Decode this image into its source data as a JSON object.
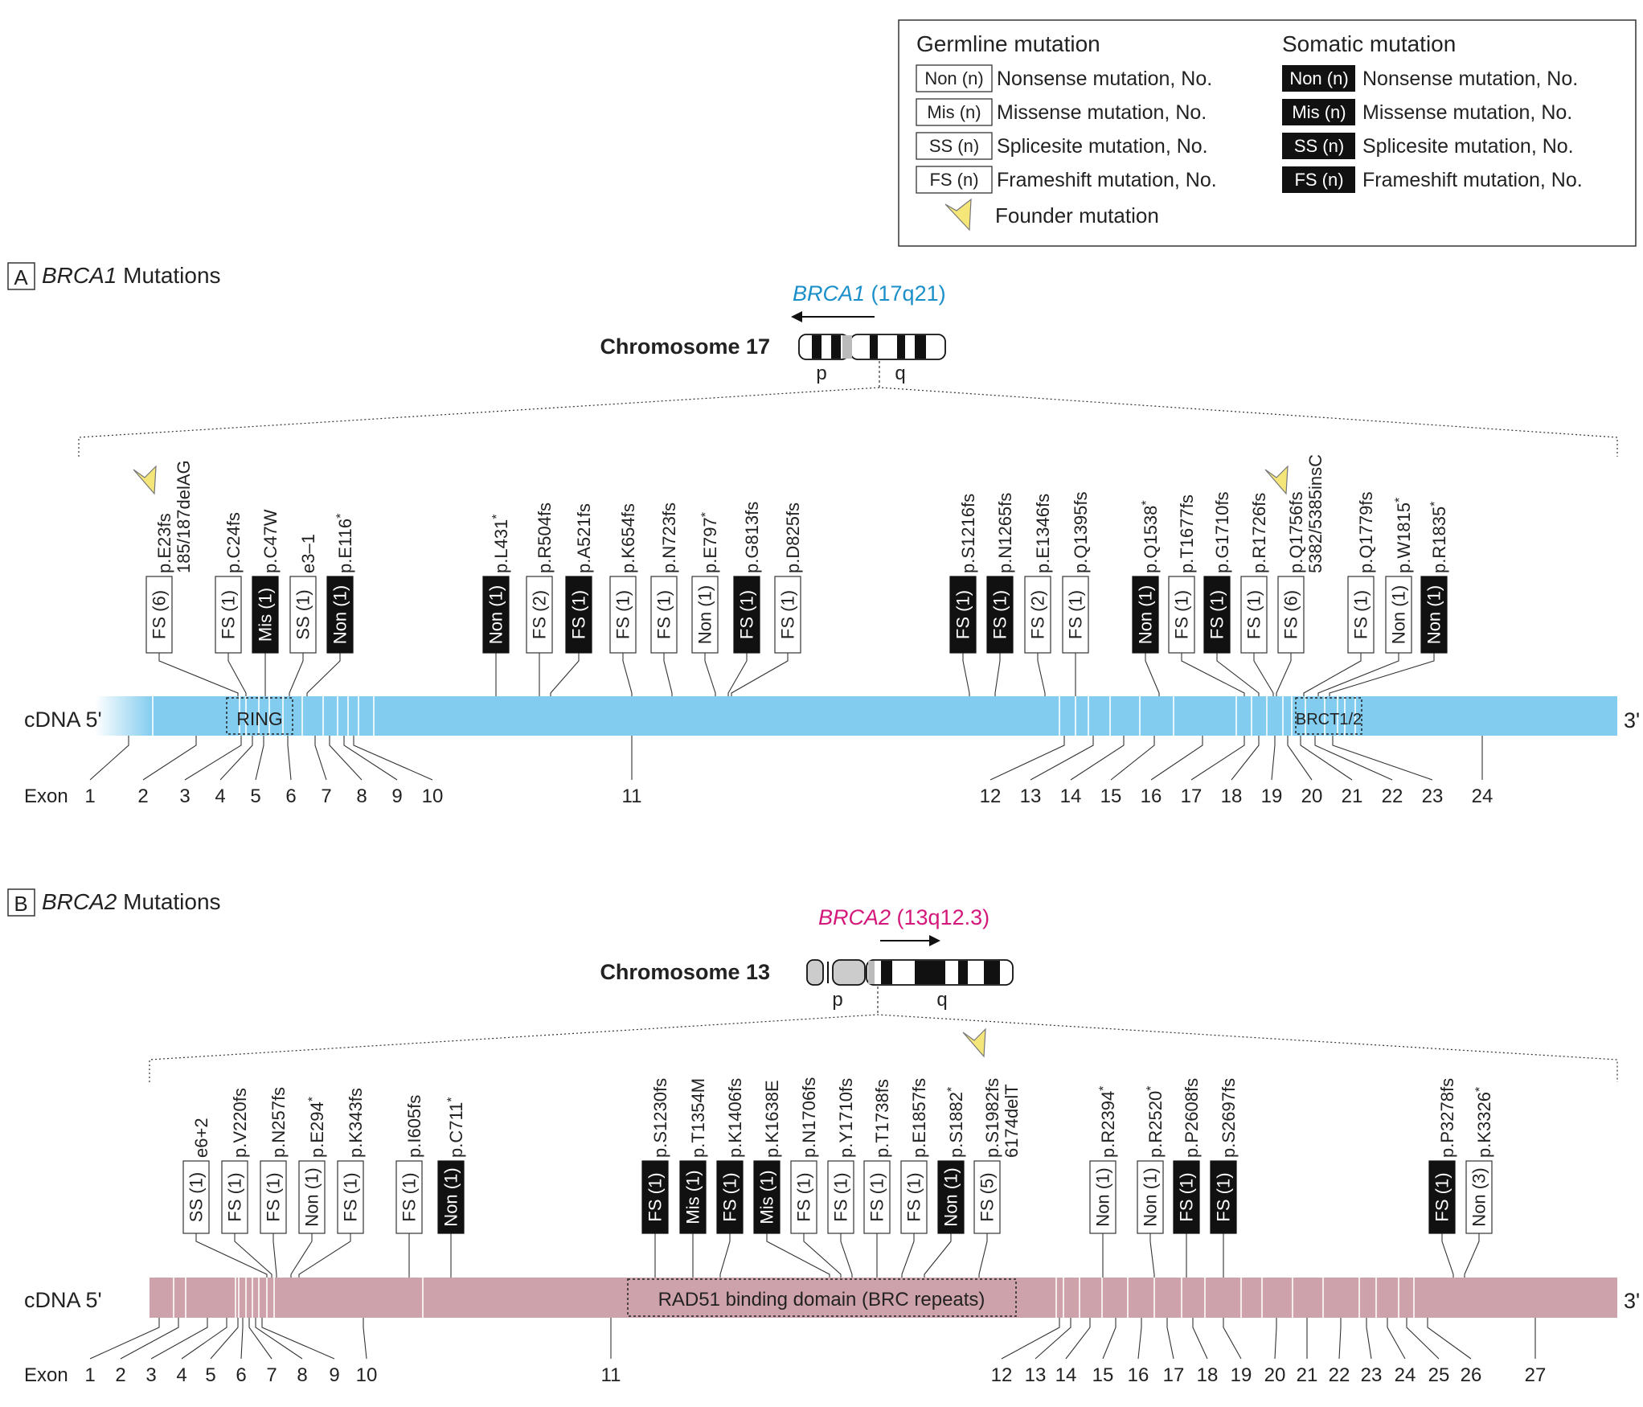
{
  "legend": {
    "germline_title": "Germline mutation",
    "somatic_title": "Somatic mutation",
    "rows": [
      {
        "box": "Non (n)",
        "desc": "Nonsense mutation, No."
      },
      {
        "box": "Mis (n)",
        "desc": "Missense mutation, No."
      },
      {
        "box": "SS (n)",
        "desc": "Splicesite mutation, No."
      },
      {
        "box": "FS (n)",
        "desc": "Frameshift mutation, No."
      }
    ],
    "founder_label": "Founder mutation"
  },
  "colors": {
    "brca1_bar": "#82ccef",
    "brca2_bar": "#cea2aa",
    "brca1_gene_label": "#1a8fc9",
    "brca2_gene_label": "#d4177a",
    "somatic_fill": "#111111",
    "founder_arrow": "#f5e67a"
  },
  "panels": [
    {
      "letter": "A",
      "gene_italic": "BRCA1",
      "title_rest": " Mutations",
      "gene_symbol": "BRCA1",
      "locus": " (17q21)",
      "chromosome_label": "Chromosome 17",
      "arm_p": "p",
      "arm_q": "q",
      "cdna_label": "cDNA 5'",
      "three_prime": "3'",
      "exon_label": "Exon",
      "domains": [
        "RING",
        "BRCT1/2"
      ],
      "exons": [
        "1",
        "2",
        "3",
        "4",
        "5",
        "6",
        "7",
        "8",
        "9",
        "10",
        "11",
        "12",
        "13",
        "14",
        "15",
        "16",
        "17",
        "18",
        "19",
        "20",
        "21",
        "22",
        "23",
        "24"
      ],
      "mutations": [
        {
          "box": "FS (6)",
          "somatic": false,
          "label": "p.E23fs",
          "label2": "185/187delAG",
          "star": false,
          "founder": true
        },
        {
          "box": "FS (1)",
          "somatic": false,
          "label": "p.C24fs",
          "star": false,
          "founder": false
        },
        {
          "box": "Mis (1)",
          "somatic": true,
          "label": "p.C47W",
          "star": false,
          "founder": false
        },
        {
          "box": "SS (1)",
          "somatic": false,
          "label": "e3–1",
          "star": false,
          "founder": false
        },
        {
          "box": "Non (1)",
          "somatic": true,
          "label": "p.E116",
          "star": true,
          "founder": false
        },
        {
          "box": "Non (1)",
          "somatic": true,
          "label": "p.L431",
          "star": true,
          "founder": false
        },
        {
          "box": "FS (2)",
          "somatic": false,
          "label": "p.R504fs",
          "star": false,
          "founder": false
        },
        {
          "box": "FS (1)",
          "somatic": true,
          "label": "p.A521fs",
          "star": false,
          "founder": false
        },
        {
          "box": "FS (1)",
          "somatic": false,
          "label": "p.K654fs",
          "star": false,
          "founder": false
        },
        {
          "box": "FS (1)",
          "somatic": false,
          "label": "p.N723fs",
          "star": false,
          "founder": false
        },
        {
          "box": "Non (1)",
          "somatic": false,
          "label": "p.E797",
          "star": true,
          "founder": false
        },
        {
          "box": "FS (1)",
          "somatic": true,
          "label": "p.G813fs",
          "star": false,
          "founder": false
        },
        {
          "box": "FS (1)",
          "somatic": false,
          "label": "p.D825fs",
          "star": false,
          "founder": false
        },
        {
          "box": "FS (1)",
          "somatic": true,
          "label": "p.S1216fs",
          "star": false,
          "founder": false
        },
        {
          "box": "FS (1)",
          "somatic": true,
          "label": "p.N1265fs",
          "star": false,
          "founder": false
        },
        {
          "box": "FS (2)",
          "somatic": false,
          "label": "p.E1346fs",
          "star": false,
          "founder": false
        },
        {
          "box": "FS (1)",
          "somatic": false,
          "label": "p.Q1395fs",
          "star": false,
          "founder": false
        },
        {
          "box": "Non (1)",
          "somatic": true,
          "label": "p.Q1538",
          "star": true,
          "founder": false
        },
        {
          "box": "FS (1)",
          "somatic": false,
          "label": "p.T1677fs",
          "star": false,
          "founder": false
        },
        {
          "box": "FS (1)",
          "somatic": true,
          "label": "p.G1710fs",
          "star": false,
          "founder": false
        },
        {
          "box": "FS (1)",
          "somatic": false,
          "label": "p.R1726fs",
          "star": false,
          "founder": false
        },
        {
          "box": "FS (6)",
          "somatic": false,
          "label": "p.Q1756fs",
          "label2": "5382/5385insC",
          "star": false,
          "founder": true
        },
        {
          "box": "FS (1)",
          "somatic": false,
          "label": "p.Q1779fs",
          "star": false,
          "founder": false
        },
        {
          "box": "Non (1)",
          "somatic": false,
          "label": "p.W1815",
          "star": true,
          "founder": false
        },
        {
          "box": "Non (1)",
          "somatic": true,
          "label": "p.R1835",
          "star": true,
          "founder": false
        }
      ]
    },
    {
      "letter": "B",
      "gene_italic": "BRCA2",
      "title_rest": " Mutations",
      "gene_symbol": "BRCA2",
      "locus": " (13q12.3)",
      "chromosome_label": "Chromosome 13",
      "arm_p": "p",
      "arm_q": "q",
      "cdna_label": "cDNA 5'",
      "three_prime": "3'",
      "exon_label": "Exon",
      "domains": [
        "RAD51 binding domain (BRC repeats)"
      ],
      "exons": [
        "1",
        "2",
        "3",
        "4",
        "5",
        "6",
        "7",
        "8",
        "9",
        "10",
        "11",
        "12",
        "13",
        "14",
        "15",
        "16",
        "17",
        "18",
        "19",
        "20",
        "21",
        "22",
        "23",
        "24",
        "25",
        "26",
        "27"
      ],
      "mutations": [
        {
          "box": "SS (1)",
          "somatic": false,
          "label": "e6+2",
          "star": false,
          "founder": false
        },
        {
          "box": "FS (1)",
          "somatic": false,
          "label": "p.V220fs",
          "star": false,
          "founder": false
        },
        {
          "box": "FS (1)",
          "somatic": false,
          "label": "p.N257fs",
          "star": false,
          "founder": false
        },
        {
          "box": "Non (1)",
          "somatic": false,
          "label": "p.E294",
          "star": true,
          "founder": false
        },
        {
          "box": "FS (1)",
          "somatic": false,
          "label": "p.K343fs",
          "star": false,
          "founder": false
        },
        {
          "box": "FS (1)",
          "somatic": false,
          "label": "p.I605fs",
          "star": false,
          "founder": false
        },
        {
          "box": "Non (1)",
          "somatic": true,
          "label": "p.C711",
          "star": true,
          "founder": false
        },
        {
          "box": "FS (1)",
          "somatic": true,
          "label": "p.S1230fs",
          "star": false,
          "founder": false
        },
        {
          "box": "Mis (1)",
          "somatic": true,
          "label": "p.T1354M",
          "star": false,
          "founder": false
        },
        {
          "box": "FS (1)",
          "somatic": true,
          "label": "p.K1406fs",
          "star": false,
          "founder": false
        },
        {
          "box": "Mis (1)",
          "somatic": true,
          "label": "p.K1638E",
          "star": false,
          "founder": false
        },
        {
          "box": "FS (1)",
          "somatic": false,
          "label": "p.N1706fs",
          "star": false,
          "founder": false
        },
        {
          "box": "FS (1)",
          "somatic": false,
          "label": "p.Y1710fs",
          "star": false,
          "founder": false
        },
        {
          "box": "FS (1)",
          "somatic": false,
          "label": "p.T1738fs",
          "star": false,
          "founder": false
        },
        {
          "box": "FS (1)",
          "somatic": false,
          "label": "p.E1857fs",
          "star": false,
          "founder": false
        },
        {
          "box": "Non (1)",
          "somatic": true,
          "label": "p.S1882",
          "star": true,
          "founder": false
        },
        {
          "box": "FS (5)",
          "somatic": false,
          "label": "p.S1982fs",
          "label2": "6174delT",
          "star": false,
          "founder": true
        },
        {
          "box": "Non (1)",
          "somatic": false,
          "label": "p.R2394",
          "star": true,
          "founder": false
        },
        {
          "box": "Non (1)",
          "somatic": false,
          "label": "p.R2520",
          "star": true,
          "founder": false
        },
        {
          "box": "FS (1)",
          "somatic": true,
          "label": "p.P2608fs",
          "star": false,
          "founder": false
        },
        {
          "box": "FS (1)",
          "somatic": true,
          "label": "p.S2697fs",
          "star": false,
          "founder": false
        },
        {
          "box": "FS (1)",
          "somatic": true,
          "label": "p.P3278fs",
          "star": false,
          "founder": false
        },
        {
          "box": "Non (3)",
          "somatic": false,
          "label": "p.K3326",
          "star": true,
          "founder": false
        }
      ]
    }
  ]
}
